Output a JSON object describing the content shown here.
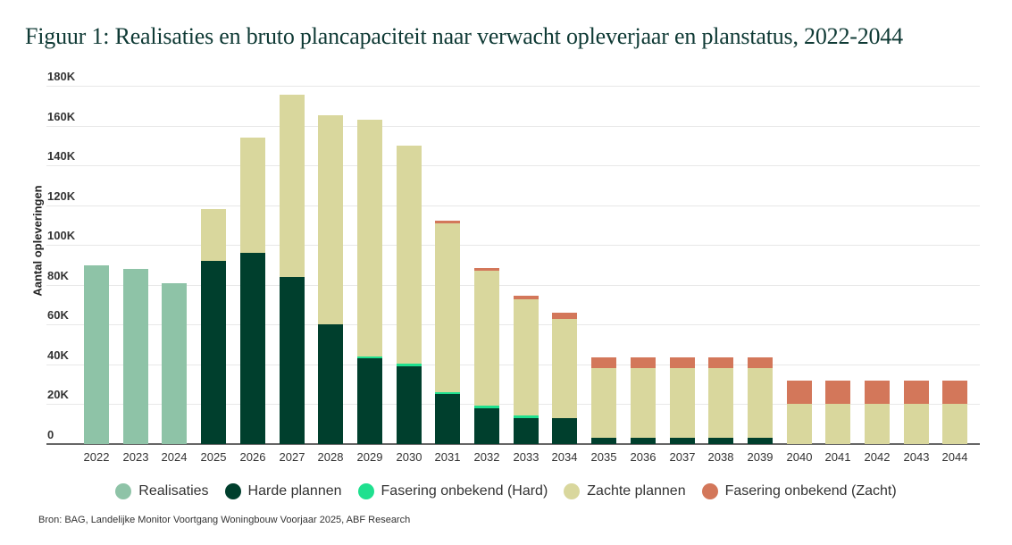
{
  "title": "Figuur 1: Realisaties en bruto plancapaciteit naar verwacht opleverjaar en planstatus, 2022-2044",
  "source": "Bron: BAG, Landelijke Monitor Voortgang Woningbouw Voorjaar 2025, ABF Research",
  "colors": {
    "realisaties": "#8ec3a7",
    "harde_plannen": "#003f2d",
    "fasering_hard": "#1fe08f",
    "zachte_plannen": "#d9d79d",
    "fasering_zacht": "#d3775a"
  },
  "legend": [
    {
      "key": "realisaties",
      "label": "Realisaties"
    },
    {
      "key": "harde_plannen",
      "label": "Harde plannen"
    },
    {
      "key": "fasering_hard",
      "label": "Fasering onbekend (Hard)"
    },
    {
      "key": "zachte_plannen",
      "label": "Zachte plannen"
    },
    {
      "key": "fasering_zacht",
      "label": "Fasering onbekend (Zacht)"
    }
  ],
  "chart_data": {
    "type": "bar",
    "stacked": true,
    "title": "Figuur 1: Realisaties en bruto plancapaciteit naar verwacht opleverjaar en planstatus, 2022-2044",
    "xlabel": "",
    "ylabel": "Aantal opleveringen",
    "ylim": [
      0,
      180000
    ],
    "yticks": [
      "0",
      "20K",
      "40K",
      "60K",
      "80K",
      "100K",
      "120K",
      "140K",
      "160K",
      "180K"
    ],
    "grid": true,
    "legend_position": "bottom",
    "categories": [
      "2022",
      "2023",
      "2024",
      "2025",
      "2026",
      "2027",
      "2028",
      "2029",
      "2030",
      "2031",
      "2032",
      "2033",
      "2034",
      "2035",
      "2036",
      "2037",
      "2038",
      "2039",
      "2040",
      "2041",
      "2042",
      "2043",
      "2044"
    ],
    "series": [
      {
        "name": "Realisaties",
        "key": "realisaties",
        "values": [
          90000,
          88000,
          81000,
          0,
          0,
          0,
          0,
          0,
          0,
          0,
          0,
          0,
          0,
          0,
          0,
          0,
          0,
          0,
          0,
          0,
          0,
          0,
          0
        ]
      },
      {
        "name": "Harde plannen",
        "key": "harde_plannen",
        "values": [
          0,
          0,
          0,
          92000,
          96000,
          84000,
          60000,
          43000,
          39000,
          25000,
          18000,
          13000,
          13000,
          3000,
          3000,
          3000,
          3000,
          3000,
          0,
          0,
          0,
          0,
          0
        ]
      },
      {
        "name": "Fasering onbekend (Hard)",
        "key": "fasering_hard",
        "values": [
          0,
          0,
          0,
          0,
          0,
          0,
          0,
          1000,
          1500,
          1000,
          1500,
          1500,
          0,
          0,
          0,
          0,
          0,
          0,
          0,
          0,
          0,
          0,
          0
        ]
      },
      {
        "name": "Zachte plannen",
        "key": "zachte_plannen",
        "values": [
          0,
          0,
          0,
          26000,
          58000,
          91500,
          105000,
          119000,
          109500,
          85000,
          67500,
          58000,
          50000,
          35000,
          35000,
          35000,
          35000,
          35000,
          20000,
          20000,
          20000,
          20000,
          20000
        ]
      },
      {
        "name": "Fasering onbekend (Zacht)",
        "key": "fasering_zacht",
        "values": [
          0,
          0,
          0,
          0,
          0,
          0,
          0,
          0,
          0,
          1000,
          1500,
          2000,
          3000,
          5500,
          5500,
          5500,
          5500,
          5500,
          12000,
          12000,
          12000,
          12000,
          12000
        ]
      }
    ]
  }
}
